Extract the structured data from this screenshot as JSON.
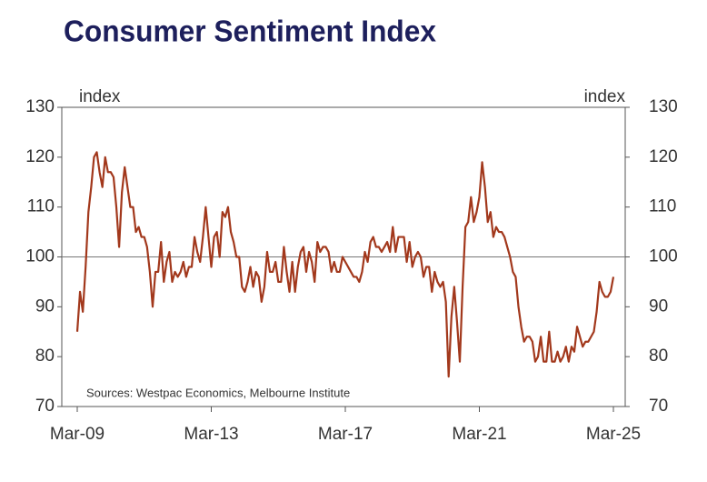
{
  "chart_data": {
    "type": "line",
    "title": "Consumer Sentiment Index",
    "y_label": "index",
    "y2_label": "index",
    "source": "Sources: Westpac Economics, Melbourne Institute",
    "color": "#a2381c",
    "reference_line": 100,
    "ylim": [
      70,
      130
    ],
    "yticks": [
      70,
      80,
      90,
      100,
      110,
      120,
      130
    ],
    "y2lim": [
      70,
      130
    ],
    "y2ticks": [
      70,
      80,
      90,
      100,
      110,
      120,
      130
    ],
    "xticks": [
      "Mar-09",
      "Mar-13",
      "Mar-17",
      "Mar-21",
      "Mar-25"
    ],
    "x": [
      "Mar-09",
      "Apr-09",
      "May-09",
      "Jun-09",
      "Jul-09",
      "Aug-09",
      "Sep-09",
      "Oct-09",
      "Nov-09",
      "Dec-09",
      "Jan-10",
      "Feb-10",
      "Mar-10",
      "Apr-10",
      "May-10",
      "Jun-10",
      "Jul-10",
      "Aug-10",
      "Sep-10",
      "Oct-10",
      "Nov-10",
      "Dec-10",
      "Jan-11",
      "Feb-11",
      "Mar-11",
      "Apr-11",
      "May-11",
      "Jun-11",
      "Jul-11",
      "Aug-11",
      "Sep-11",
      "Oct-11",
      "Nov-11",
      "Dec-11",
      "Jan-12",
      "Feb-12",
      "Mar-12",
      "Apr-12",
      "May-12",
      "Jun-12",
      "Jul-12",
      "Aug-12",
      "Sep-12",
      "Oct-12",
      "Nov-12",
      "Dec-12",
      "Jan-13",
      "Feb-13",
      "Mar-13",
      "Apr-13",
      "May-13",
      "Jun-13",
      "Jul-13",
      "Aug-13",
      "Sep-13",
      "Oct-13",
      "Nov-13",
      "Dec-13",
      "Jan-14",
      "Feb-14",
      "Mar-14",
      "Apr-14",
      "May-14",
      "Jun-14",
      "Jul-14",
      "Aug-14",
      "Sep-14",
      "Oct-14",
      "Nov-14",
      "Dec-14",
      "Jan-15",
      "Feb-15",
      "Mar-15",
      "Apr-15",
      "May-15",
      "Jun-15",
      "Jul-15",
      "Aug-15",
      "Sep-15",
      "Oct-15",
      "Nov-15",
      "Dec-15",
      "Jan-16",
      "Feb-16",
      "Mar-16",
      "Apr-16",
      "May-16",
      "Jun-16",
      "Jul-16",
      "Aug-16",
      "Sep-16",
      "Oct-16",
      "Nov-16",
      "Dec-16",
      "Jan-17",
      "Feb-17",
      "Mar-17",
      "Apr-17",
      "May-17",
      "Jun-17",
      "Jul-17",
      "Aug-17",
      "Sep-17",
      "Oct-17",
      "Nov-17",
      "Dec-17",
      "Jan-18",
      "Feb-18",
      "Mar-18",
      "Apr-18",
      "May-18",
      "Jun-18",
      "Jul-18",
      "Aug-18",
      "Sep-18",
      "Oct-18",
      "Nov-18",
      "Dec-18",
      "Jan-19",
      "Feb-19",
      "Mar-19",
      "Apr-19",
      "May-19",
      "Jun-19",
      "Jul-19",
      "Aug-19",
      "Sep-19",
      "Oct-19",
      "Nov-19",
      "Dec-19",
      "Jan-20",
      "Feb-20",
      "Mar-20",
      "Apr-20",
      "May-20",
      "Jun-20",
      "Jul-20",
      "Aug-20",
      "Sep-20",
      "Oct-20",
      "Nov-20",
      "Dec-20",
      "Jan-21",
      "Feb-21",
      "Mar-21",
      "Apr-21",
      "May-21",
      "Jun-21",
      "Jul-21",
      "Aug-21",
      "Sep-21",
      "Oct-21",
      "Nov-21",
      "Dec-21",
      "Jan-22",
      "Feb-22",
      "Mar-22",
      "Apr-22",
      "May-22",
      "Jun-22",
      "Jul-22",
      "Aug-22",
      "Sep-22",
      "Oct-22",
      "Nov-22",
      "Dec-22",
      "Jan-23",
      "Feb-23",
      "Mar-23",
      "Apr-23",
      "May-23",
      "Jun-23",
      "Jul-23",
      "Aug-23",
      "Sep-23",
      "Oct-23",
      "Nov-23",
      "Dec-23",
      "Jan-24",
      "Feb-24",
      "Mar-24",
      "Apr-24",
      "May-24",
      "Jun-24",
      "Jul-24",
      "Aug-24",
      "Sep-24",
      "Oct-24",
      "Nov-24",
      "Dec-24",
      "Jan-25",
      "Feb-25",
      "Mar-25"
    ],
    "values": [
      85,
      93,
      89,
      98,
      109,
      114,
      120,
      121,
      117,
      114,
      120,
      117,
      117,
      116,
      110,
      102,
      113,
      118,
      114,
      110,
      110,
      105,
      106,
      104,
      104,
      102,
      97,
      90,
      97,
      97,
      103,
      95,
      99,
      101,
      95,
      97,
      96,
      97,
      99,
      96,
      98,
      98,
      104,
      101,
      99,
      104,
      110,
      104,
      98,
      104,
      105,
      100,
      109,
      108,
      110,
      105,
      103,
      100,
      100,
      94,
      93,
      95,
      98,
      94,
      97,
      96,
      91,
      94,
      101,
      97,
      97,
      99,
      95,
      95,
      102,
      97,
      93,
      99,
      93,
      98,
      101,
      102,
      97,
      101,
      99,
      95,
      103,
      101,
      102,
      102,
      101,
      97,
      99,
      97,
      97,
      100,
      99,
      98,
      97,
      96,
      96,
      95,
      97,
      101,
      99,
      103,
      104,
      102,
      102,
      101,
      102,
      103,
      101,
      106,
      101,
      104,
      104,
      104,
      99,
      103,
      98,
      100,
      101,
      100,
      96,
      98,
      98,
      93,
      97,
      95,
      94,
      95,
      91,
      76,
      88,
      94,
      87,
      79,
      94,
      106,
      107,
      112,
      107,
      109,
      112,
      119,
      114,
      107,
      109,
      104,
      106,
      105,
      105,
      104,
      102,
      100,
      97,
      96,
      90,
      86,
      83,
      84,
      84,
      83,
      79,
      80,
      84,
      79,
      79,
      85,
      79,
      79,
      81,
      79,
      80,
      82,
      79,
      82,
      81,
      86,
      84,
      82,
      83,
      83,
      84,
      85,
      89,
      95,
      93,
      92,
      92,
      93,
      96
    ]
  }
}
